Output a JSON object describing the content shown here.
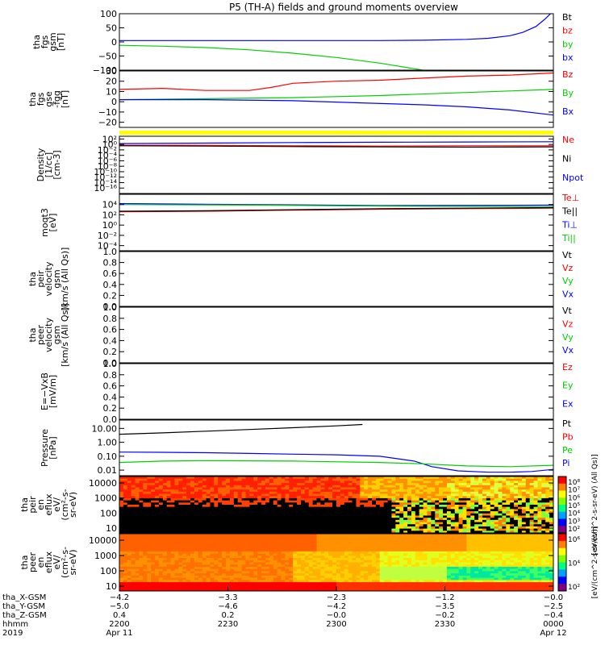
{
  "title": "P5 (TH-A) fields and ground moments overview",
  "colors": {
    "red": "#ff0000",
    "green": "#00d000",
    "blue": "#0000ff",
    "black": "#000000",
    "yellow": "#ffff00"
  },
  "chart_data": [
    {
      "type": "line",
      "ylabel": [
        "tha",
        "fgs",
        "gsm",
        "[nT]"
      ],
      "ylim": [
        -100,
        100
      ],
      "yticks": [
        "100",
        "50",
        "0",
        "−50",
        "−100"
      ],
      "ytick_values": [
        100,
        50,
        0,
        -50,
        -100
      ],
      "legend": [
        {
          "label": "Bt",
          "color": "#000000"
        },
        {
          "label": "bz",
          "color": "#ff0000"
        },
        {
          "label": "by",
          "color": "#00d000"
        },
        {
          "label": "bx",
          "color": "#0000ff"
        }
      ],
      "series": [
        {
          "color": "#ff0000",
          "x": [
            0,
            0.03,
            0.06,
            0.08
          ],
          "y": [
            102,
            106,
            110,
            114
          ]
        },
        {
          "color": "#00d000",
          "x": [
            0,
            0.1,
            0.2,
            0.3,
            0.4,
            0.5,
            0.6,
            0.68,
            0.7
          ],
          "y": [
            -12,
            -15,
            -20,
            -28,
            -40,
            -55,
            -75,
            -95,
            -100
          ]
        },
        {
          "color": "#0000ff",
          "x": [
            0,
            0.2,
            0.4,
            0.6,
            0.7,
            0.8,
            0.85,
            0.9,
            0.93,
            0.96,
            0.98,
            1.0
          ],
          "y": [
            5,
            5,
            5,
            5,
            6,
            9,
            13,
            22,
            34,
            55,
            80,
            110
          ]
        }
      ]
    },
    {
      "type": "line",
      "ylabel": [
        "tha",
        "fgs",
        "gse",
        "-fgg",
        "[nT]"
      ],
      "ylim": [
        -25,
        30
      ],
      "yticks": [
        "30",
        "20",
        "10",
        "0",
        "−10",
        "−20"
      ],
      "ytick_values": [
        30,
        20,
        10,
        0,
        -10,
        -20
      ],
      "legend": [
        {
          "label": "Bz",
          "color": "#ff0000"
        },
        {
          "label": "By",
          "color": "#00d000"
        },
        {
          "label": "Bx",
          "color": "#0000ff"
        }
      ],
      "series": [
        {
          "color": "#ff0000",
          "x": [
            0,
            0.1,
            0.2,
            0.3,
            0.35,
            0.4,
            0.5,
            0.6,
            0.7,
            0.8,
            0.9,
            1.0
          ],
          "y": [
            12,
            13,
            11,
            11,
            14,
            18,
            20,
            21,
            23,
            25,
            26,
            28
          ]
        },
        {
          "color": "#00d000",
          "x": [
            0,
            0.2,
            0.4,
            0.6,
            0.8,
            1.0
          ],
          "y": [
            2,
            3,
            4,
            6,
            9,
            12
          ]
        },
        {
          "color": "#0000ff",
          "x": [
            0,
            0.2,
            0.4,
            0.55,
            0.7,
            0.8,
            0.9,
            1.0
          ],
          "y": [
            2,
            2,
            1,
            -1,
            -3,
            -5,
            -8,
            -13
          ]
        }
      ]
    },
    {
      "type": "line",
      "scale": "log",
      "ylabel": [
        "Density",
        "[1/cc]",
        "[cm-3]"
      ],
      "ylim_exp": [
        -18,
        3
      ],
      "yticks": [
        "10²",
        "10⁰",
        "10⁻²",
        "10⁻⁴",
        "10⁻⁶",
        "10⁻⁸",
        "10⁻¹⁰",
        "10⁻¹²",
        "10⁻¹⁴",
        "10⁻¹⁶"
      ],
      "ytick_exp": [
        2,
        0,
        -2,
        -4,
        -6,
        -8,
        -10,
        -12,
        -14,
        -16
      ],
      "legend": [
        {
          "label": "Ne",
          "color": "#ff0000"
        },
        {
          "label": "Ni",
          "color": "#000000"
        },
        {
          "label": "Npot",
          "color": "#0000ff"
        }
      ],
      "series": [
        {
          "color": "#0000ff",
          "x": [
            0,
            0.2,
            0.4,
            0.6,
            0.8,
            1.0
          ],
          "y": [
            0.3,
            0.5,
            0.7,
            0.8,
            0.9,
            1.0
          ]
        },
        {
          "color": "#ff0000",
          "x": [
            0,
            0.2,
            0.4,
            0.6,
            0.8,
            1.0
          ],
          "y": [
            -0.3,
            -0.3,
            -0.5,
            -0.6,
            -0.5,
            -0.5
          ]
        },
        {
          "color": "#000000",
          "x": [
            0,
            0.2,
            0.4,
            0.6,
            0.8,
            1.0
          ],
          "y": [
            -0.5,
            -0.6,
            -0.8,
            -0.9,
            -1.0,
            -0.9
          ]
        }
      ]
    },
    {
      "type": "line",
      "scale": "log",
      "ylabel": [
        "moqt3",
        "[eV]"
      ],
      "ylim_exp": [
        -5,
        6
      ],
      "yticks": [
        "10⁴",
        "10²",
        "10⁰",
        "10⁻²",
        "10⁻⁴"
      ],
      "ytick_exp": [
        4,
        2,
        0,
        -2,
        -4
      ],
      "legend": [
        {
          "label": "Te⊥",
          "color": "#ff0000"
        },
        {
          "label": "Te||",
          "color": "#000000"
        },
        {
          "label": "Ti⊥",
          "color": "#0000ff"
        },
        {
          "label": "Ti||",
          "color": "#00d000"
        }
      ],
      "series": [
        {
          "color": "#0000ff",
          "x": [
            0,
            0.3,
            0.6,
            1.0
          ],
          "y": [
            4.2,
            4.0,
            3.8,
            3.9
          ]
        },
        {
          "color": "#00d000",
          "x": [
            0,
            0.3,
            0.6,
            1.0
          ],
          "y": [
            4.0,
            3.9,
            3.7,
            3.6
          ]
        },
        {
          "color": "#ff0000",
          "x": [
            0,
            0.2,
            0.4,
            0.6,
            0.8,
            1.0
          ],
          "y": [
            2.6,
            2.7,
            2.9,
            3.1,
            3.2,
            3.3
          ]
        },
        {
          "color": "#000000",
          "x": [
            0,
            0.2,
            0.4,
            0.6,
            0.8,
            1.0
          ],
          "y": [
            2.7,
            2.8,
            3.0,
            3.2,
            3.3,
            3.4
          ]
        }
      ]
    },
    {
      "type": "line",
      "ylabel": [
        "tha",
        "peir",
        "velocity",
        "gsm",
        "[km/s (All Qs)]"
      ],
      "ylim": [
        0,
        1
      ],
      "yticks": [
        "1.0",
        "0.8",
        "0.6",
        "0.4",
        "0.2",
        "0.0"
      ],
      "ytick_values": [
        1.0,
        0.8,
        0.6,
        0.4,
        0.2,
        0.0
      ],
      "legend": [
        {
          "label": "Vt",
          "color": "#000000"
        },
        {
          "label": "Vz",
          "color": "#ff0000"
        },
        {
          "label": "Vy",
          "color": "#00d000"
        },
        {
          "label": "Vx",
          "color": "#0000ff"
        }
      ],
      "series": []
    },
    {
      "type": "line",
      "ylabel": [
        "tha",
        "peer",
        "velocity",
        "gsm",
        "[km/s (All Qs)]"
      ],
      "ylim": [
        0,
        1
      ],
      "yticks": [
        "1.0",
        "0.8",
        "0.6",
        "0.4",
        "0.2",
        "0.0"
      ],
      "ytick_values": [
        1.0,
        0.8,
        0.6,
        0.4,
        0.2,
        0.0
      ],
      "legend": [
        {
          "label": "Vt",
          "color": "#000000"
        },
        {
          "label": "Vz",
          "color": "#ff0000"
        },
        {
          "label": "Vy",
          "color": "#00d000"
        },
        {
          "label": "Vx",
          "color": "#0000ff"
        }
      ],
      "series": []
    },
    {
      "type": "line",
      "ylabel": [
        "E=−VxB",
        "[mV/m]"
      ],
      "ylim": [
        0,
        1
      ],
      "yticks": [
        "1.0",
        "0.8",
        "0.6",
        "0.4",
        "0.2",
        "0.0"
      ],
      "ytick_values": [
        1.0,
        0.8,
        0.6,
        0.4,
        0.2,
        0.0
      ],
      "legend": [
        {
          "label": "Ez",
          "color": "#ff0000"
        },
        {
          "label": "Ey",
          "color": "#00d000"
        },
        {
          "label": "Ex",
          "color": "#0000ff"
        }
      ],
      "series": []
    },
    {
      "type": "line",
      "scale": "log",
      "ylabel": [
        "Pressure",
        "[nPa]"
      ],
      "ylim_exp": [
        -2.4,
        1.6
      ],
      "yticks": [
        "10.00",
        "1.00",
        "0.10",
        "0.01"
      ],
      "ytick_exp": [
        1,
        0,
        -1,
        -2
      ],
      "legend": [
        {
          "label": "Pt",
          "color": "#000000"
        },
        {
          "label": "Pb",
          "color": "#ff0000"
        },
        {
          "label": "Pe",
          "color": "#00d000"
        },
        {
          "label": "Pi",
          "color": "#0000ff"
        }
      ],
      "series": [
        {
          "color": "#000000",
          "x": [
            0,
            0.1,
            0.2,
            0.3,
            0.4,
            0.5,
            0.56
          ],
          "y": [
            0.58,
            0.68,
            0.8,
            0.92,
            1.05,
            1.18,
            1.28
          ]
        },
        {
          "color": "#0000ff",
          "x": [
            0,
            0.1,
            0.2,
            0.3,
            0.4,
            0.5,
            0.6,
            0.68,
            0.72,
            0.78,
            0.85,
            0.9,
            0.95,
            1.0
          ],
          "y": [
            -0.7,
            -0.72,
            -0.75,
            -0.8,
            -0.85,
            -0.9,
            -1.0,
            -1.35,
            -1.75,
            -2.05,
            -2.15,
            -2.15,
            -2.1,
            -1.95
          ]
        },
        {
          "color": "#00d000",
          "x": [
            0,
            0.1,
            0.2,
            0.4,
            0.6,
            0.7,
            0.8,
            0.9,
            1.0
          ],
          "y": [
            -1.45,
            -1.35,
            -1.32,
            -1.35,
            -1.45,
            -1.55,
            -1.7,
            -1.75,
            -1.65
          ]
        }
      ]
    },
    {
      "type": "heatmap",
      "ylabel": [
        "tha",
        "peir",
        "en",
        "eflux",
        "eV/",
        "(cm²-s-",
        "sr-eV)"
      ],
      "yticks": [
        "10000",
        "1000",
        "100",
        "10"
      ],
      "ytick_exp": [
        4,
        3,
        2,
        1
      ],
      "colorbar_ticks": [
        "10⁸",
        "10⁷",
        "10⁶",
        "10⁵",
        "10⁴",
        "10³",
        "10²"
      ],
      "colorbar_label": "[eV/(cm^2-s-sr-eV) (All Qs)]"
    },
    {
      "type": "heatmap",
      "ylabel": [
        "tha",
        "peer",
        "en",
        "eflux",
        "eV/",
        "(cm²-s-",
        "sr-eV)"
      ],
      "yticks": [
        "10000",
        "1000",
        "100",
        "10"
      ],
      "ytick_exp": [
        4,
        3,
        2,
        1
      ],
      "colorbar_ticks": [
        "10⁶",
        "10⁴",
        "10²"
      ],
      "colorbar_label": "[eV/(cm^2-s-sr-eV)]"
    }
  ],
  "xaxis": {
    "rows": [
      {
        "label": "tha_X-GSM",
        "values": [
          "−4.2",
          "−3.3",
          "−2.3",
          "−1.2",
          "−0.0"
        ]
      },
      {
        "label": "tha_Y-GSM",
        "values": [
          "−5.0",
          "−4.6",
          "−4.2",
          "−3.5",
          "−2.5"
        ]
      },
      {
        "label": "tha_Z-GSM",
        "values": [
          "0.4",
          "0.2",
          "−0.0",
          "−0.2",
          "−0.4"
        ]
      },
      {
        "label": "hhmm",
        "values": [
          "2200",
          "2230",
          "2300",
          "2330",
          "0000"
        ]
      },
      {
        "label": "2019",
        "values": [
          "Apr 11",
          "",
          "",
          "",
          "Apr 12"
        ]
      }
    ]
  }
}
